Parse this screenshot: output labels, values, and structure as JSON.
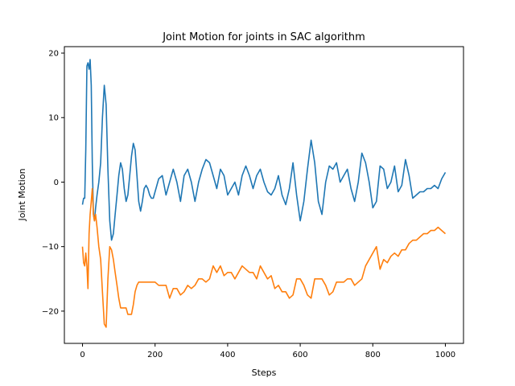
{
  "chart_data": {
    "type": "line",
    "title": "Joint Motion for joints in SAC algorithm",
    "xlabel": "Steps",
    "ylabel": "Joint Motion",
    "xlim": [
      -50,
      1050
    ],
    "ylim": [
      -25,
      21
    ],
    "xticks": [
      0,
      200,
      400,
      600,
      800,
      1000
    ],
    "yticks": [
      -20,
      -10,
      0,
      10,
      20
    ],
    "grid": false,
    "legend": "none",
    "series": [
      {
        "color": "#1f77b4",
        "x": [
          0,
          3,
          6,
          9,
          12,
          15,
          18,
          21,
          24,
          27,
          30,
          33,
          36,
          40,
          45,
          50,
          55,
          60,
          65,
          70,
          75,
          80,
          85,
          90,
          95,
          100,
          105,
          110,
          115,
          120,
          125,
          130,
          135,
          140,
          145,
          150,
          155,
          160,
          165,
          170,
          175,
          180,
          185,
          190,
          195,
          200,
          210,
          220,
          230,
          240,
          250,
          260,
          270,
          280,
          290,
          300,
          310,
          320,
          330,
          340,
          350,
          360,
          370,
          380,
          390,
          400,
          410,
          420,
          430,
          440,
          450,
          460,
          470,
          480,
          490,
          500,
          510,
          520,
          530,
          540,
          550,
          560,
          570,
          580,
          590,
          600,
          610,
          620,
          630,
          640,
          650,
          660,
          670,
          680,
          690,
          700,
          710,
          720,
          730,
          740,
          750,
          760,
          770,
          780,
          790,
          800,
          810,
          820,
          830,
          840,
          850,
          860,
          870,
          880,
          890,
          900,
          910,
          920,
          930,
          940,
          950,
          960,
          970,
          980,
          990,
          1000
        ],
        "y": [
          -3.5,
          -2.5,
          -2.5,
          5,
          18,
          18.5,
          17.5,
          19,
          15,
          3,
          -5,
          -6,
          -4,
          -2,
          0,
          3,
          10,
          15,
          12,
          2,
          -6,
          -9,
          -8,
          -5,
          -2,
          1,
          3,
          2,
          -1,
          -3,
          -2,
          1,
          4,
          6,
          5,
          1,
          -3,
          -4.5,
          -3,
          -1,
          -0.5,
          -1,
          -2,
          -2.5,
          -2.5,
          -1.5,
          0.5,
          1,
          -2,
          0,
          2,
          0,
          -3,
          1,
          2,
          0,
          -3,
          0,
          2,
          3.5,
          3,
          1,
          -1,
          2,
          1,
          -2,
          -1,
          0,
          -2,
          1,
          2.5,
          1,
          -1,
          1,
          2,
          0,
          -1.5,
          -2,
          -1,
          1,
          -2,
          -3.5,
          -1,
          3,
          -2,
          -6,
          -3,
          2,
          6.5,
          3,
          -3,
          -5,
          0,
          2.5,
          2,
          3,
          0,
          1,
          2,
          -1,
          -3,
          0,
          4.5,
          3,
          0,
          -4,
          -3,
          2.5,
          2,
          -1,
          0,
          2.5,
          -1.5,
          -0.5,
          3.5,
          1,
          -2.5,
          -2,
          -1.5,
          -1.5,
          -1,
          -1,
          -0.5,
          -1,
          0.5,
          1.5
        ]
      },
      {
        "color": "#ff7f0e",
        "x": [
          0,
          3,
          6,
          9,
          12,
          15,
          18,
          21,
          24,
          27,
          30,
          33,
          36,
          40,
          45,
          50,
          55,
          60,
          65,
          70,
          75,
          80,
          85,
          90,
          95,
          100,
          105,
          110,
          115,
          120,
          125,
          130,
          135,
          140,
          145,
          150,
          155,
          160,
          165,
          170,
          175,
          180,
          185,
          190,
          195,
          200,
          210,
          220,
          230,
          240,
          250,
          260,
          270,
          280,
          290,
          300,
          310,
          320,
          330,
          340,
          350,
          360,
          370,
          380,
          390,
          400,
          410,
          420,
          430,
          440,
          450,
          460,
          470,
          480,
          490,
          500,
          510,
          520,
          530,
          540,
          550,
          560,
          570,
          580,
          590,
          600,
          610,
          620,
          630,
          640,
          650,
          660,
          670,
          680,
          690,
          700,
          710,
          720,
          730,
          740,
          750,
          760,
          770,
          780,
          790,
          800,
          810,
          820,
          830,
          840,
          850,
          860,
          870,
          880,
          890,
          900,
          910,
          920,
          930,
          940,
          950,
          960,
          970,
          980,
          990,
          1000
        ],
        "y": [
          -10,
          -12.5,
          -13,
          -11,
          -13,
          -16.5,
          -8,
          -5,
          -3,
          -1,
          -5,
          -6,
          -5,
          -7,
          -10,
          -12,
          -17,
          -22,
          -22.5,
          -15,
          -10,
          -10.5,
          -12,
          -14,
          -16,
          -18,
          -19.5,
          -19.5,
          -19.5,
          -19.5,
          -20.5,
          -20.5,
          -20.5,
          -19,
          -17,
          -16,
          -15.5,
          -15.5,
          -15.5,
          -15.5,
          -15.5,
          -15.5,
          -15.5,
          -15.5,
          -15.5,
          -15.5,
          -16,
          -16,
          -16,
          -18,
          -16.5,
          -16.5,
          -17.5,
          -17,
          -16,
          -16.5,
          -16,
          -15,
          -15,
          -15.5,
          -15,
          -13,
          -14,
          -13,
          -14.5,
          -14,
          -14,
          -15,
          -14,
          -13,
          -13.5,
          -14,
          -14,
          -15,
          -13,
          -14,
          -15,
          -14.5,
          -16.5,
          -16,
          -17,
          -17,
          -18,
          -17.5,
          -15,
          -15,
          -16,
          -17.5,
          -18,
          -15,
          -15,
          -15,
          -16,
          -17.5,
          -17,
          -15.5,
          -15.5,
          -15.5,
          -15,
          -15,
          -16,
          -15.5,
          -15,
          -13,
          -12,
          -11,
          -10,
          -13.5,
          -12,
          -12.5,
          -11.5,
          -11,
          -11.5,
          -10.5,
          -10.5,
          -9.5,
          -9,
          -9,
          -8.5,
          -8,
          -8,
          -7.5,
          -7.5,
          -7,
          -7.5,
          -8
        ]
      }
    ]
  }
}
